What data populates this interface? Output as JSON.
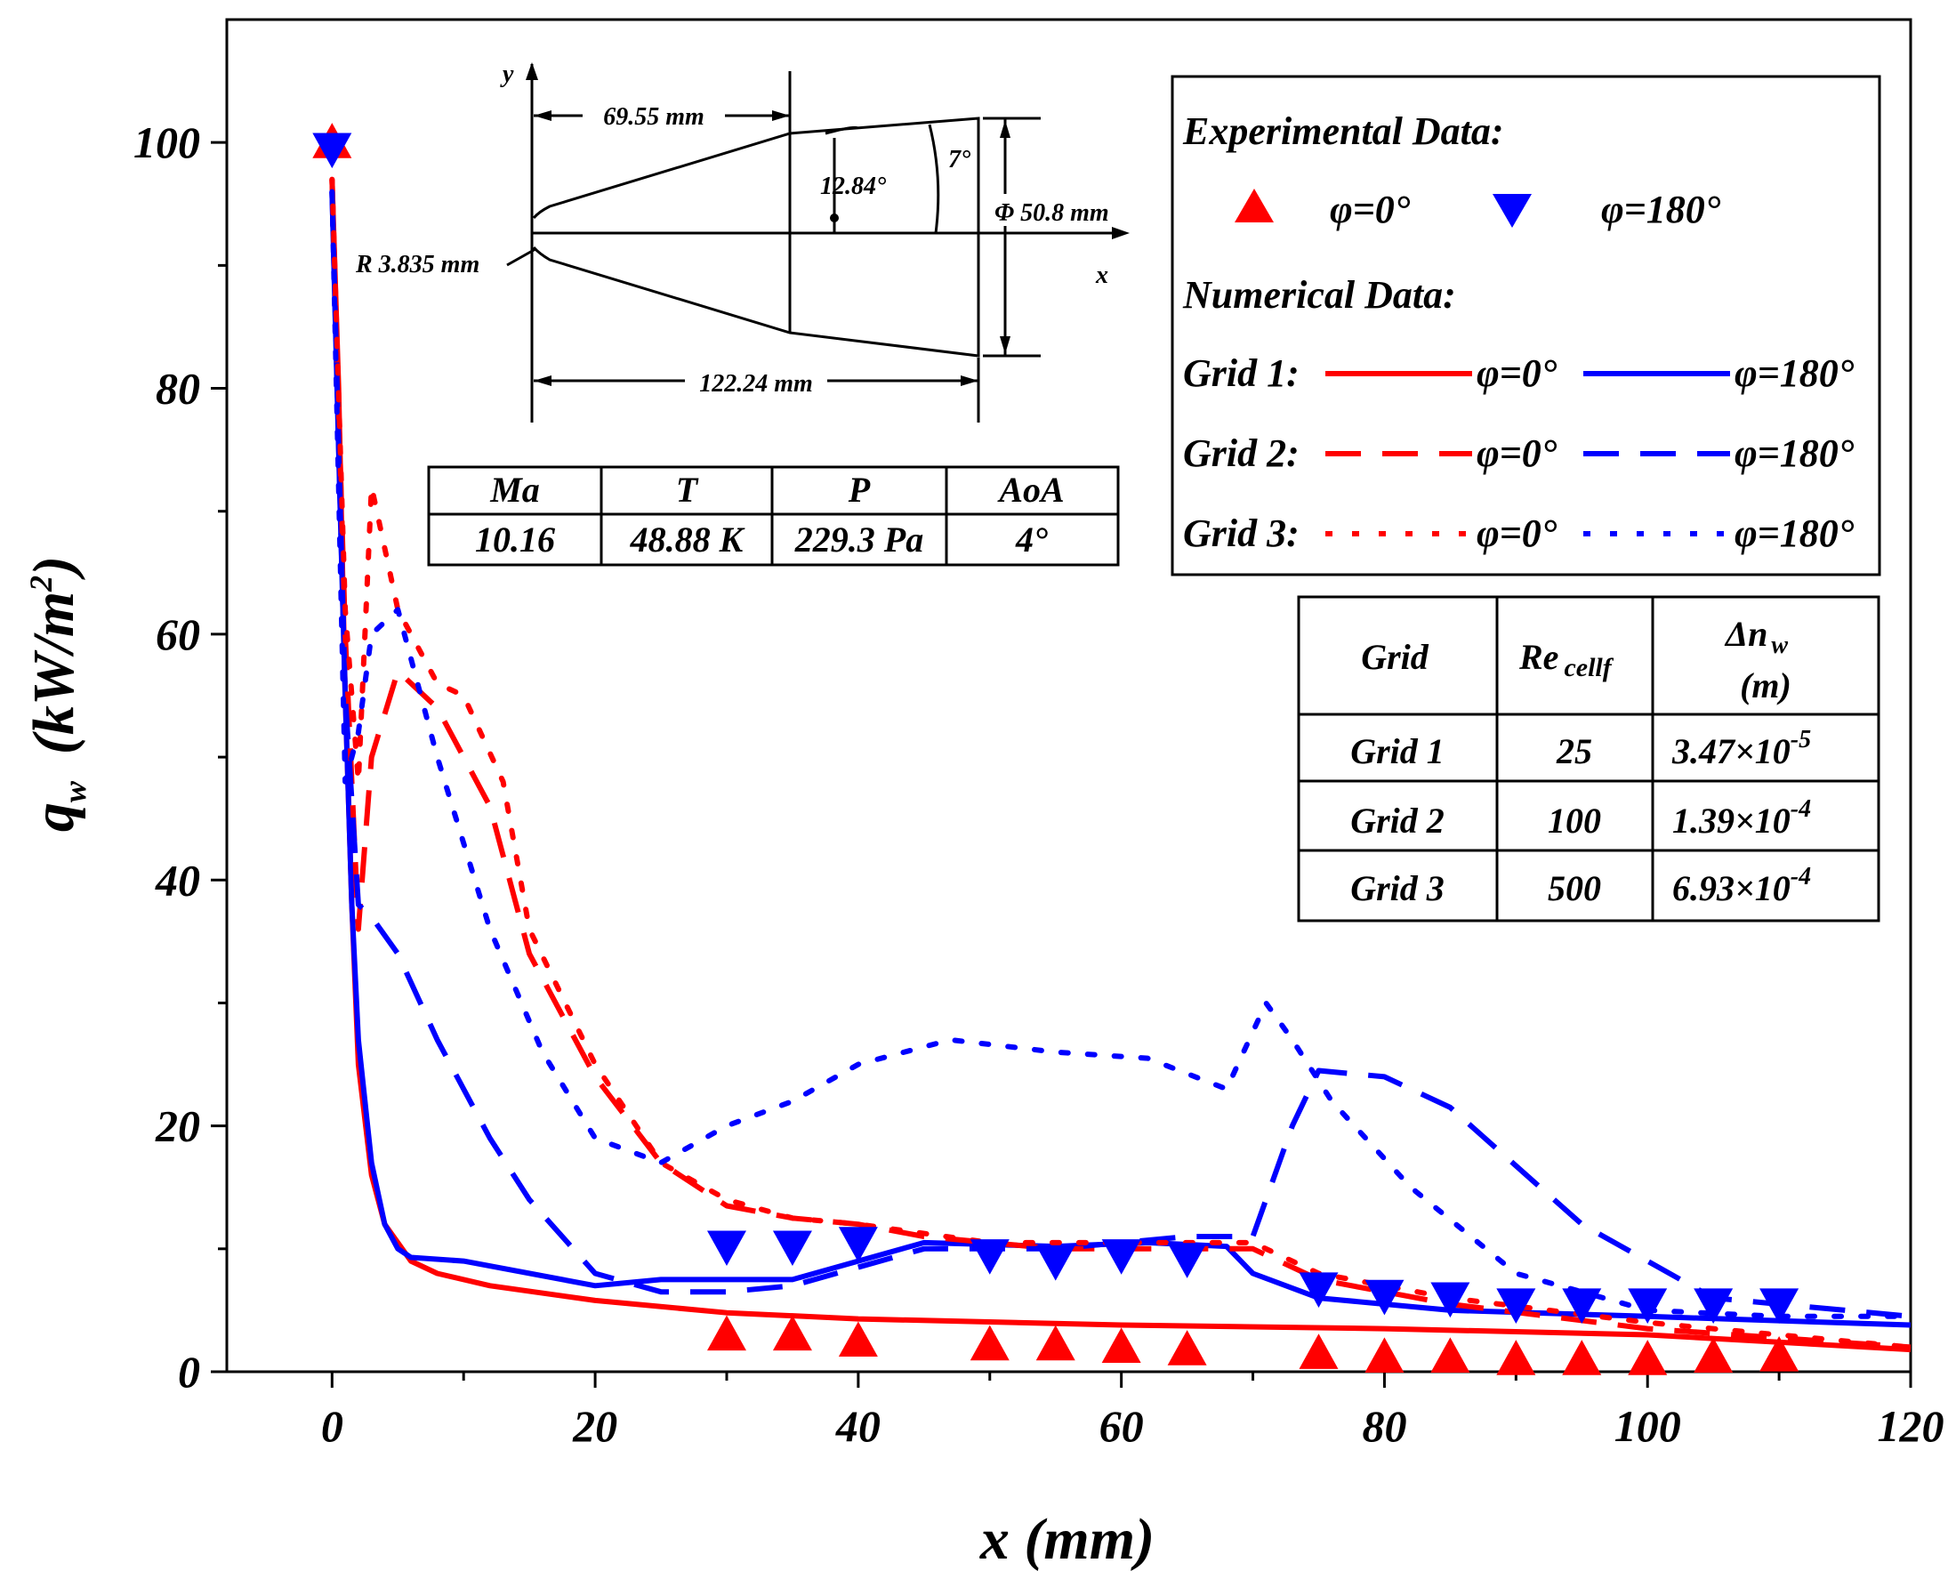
{
  "chart_data": {
    "type": "line",
    "xlabel": "x (mm)",
    "ylabel": "q",
    "ylabel_sub": "w",
    "ylabel_unit": "(kW/m",
    "ylabel_unit_sup": "2",
    "ylabel_unit_close": ")",
    "xlim": [
      -8,
      120
    ],
    "ylim": [
      0,
      110
    ],
    "xticks": [
      0,
      20,
      40,
      60,
      80,
      100,
      120
    ],
    "yticks": [
      0,
      20,
      40,
      60,
      80,
      100
    ],
    "colors": {
      "red": "#ff0000",
      "blue": "#0000ff"
    },
    "experimental": [
      {
        "name": "φ=0°",
        "marker": "triangle-up",
        "color": "#ff0000",
        "x": [
          0,
          30,
          35,
          40,
          50,
          55,
          60,
          65,
          75,
          80,
          85,
          90,
          95,
          100,
          105,
          110
        ],
        "y": [
          100,
          3,
          3,
          2.5,
          2.2,
          2.2,
          2,
          1.8,
          1.5,
          1.2,
          1.2,
          1,
          1,
          1,
          1.2,
          1.3
        ]
      },
      {
        "name": "φ=180°",
        "marker": "triangle-down",
        "color": "#0000ff",
        "x": [
          0,
          30,
          35,
          40,
          50,
          55,
          60,
          65,
          75,
          80,
          85,
          90,
          95,
          100,
          105,
          110
        ],
        "y": [
          99.5,
          10.2,
          10.2,
          10.5,
          9.5,
          9,
          9.5,
          9.2,
          6.8,
          6.2,
          6,
          5.5,
          5.5,
          5.5,
          5.5,
          5.5
        ]
      }
    ],
    "series": [
      {
        "name": "Grid 1 φ=0°",
        "color": "#ff0000",
        "dash": "solid",
        "x": [
          0,
          0.5,
          1,
          1.5,
          2,
          3,
          4,
          6,
          8,
          12,
          20,
          30,
          40,
          60,
          80,
          100,
          120
        ],
        "y": [
          97,
          80,
          55,
          38,
          25,
          16,
          12,
          9,
          8,
          7,
          5.8,
          4.8,
          4.3,
          3.8,
          3.5,
          3,
          1.8
        ]
      },
      {
        "name": "Grid 1 φ=180°",
        "color": "#0000ff",
        "dash": "solid",
        "x": [
          0,
          0.5,
          1,
          1.5,
          2,
          3,
          4,
          5,
          6,
          10,
          20,
          25,
          35,
          45,
          55,
          62,
          68,
          70,
          75,
          85,
          100,
          120
        ],
        "y": [
          96,
          75,
          55,
          38,
          27,
          17,
          12,
          10,
          9.3,
          9,
          7,
          7.5,
          7.5,
          10.5,
          10.2,
          10.5,
          10.2,
          8,
          6,
          5,
          4.5,
          3.8
        ]
      },
      {
        "name": "Grid 2 φ=0°",
        "color": "#ff0000",
        "dash": "dash",
        "x": [
          0,
          1,
          2,
          3,
          5,
          8,
          12,
          15,
          20,
          25,
          30,
          35,
          40,
          45,
          55,
          65,
          70,
          75,
          85,
          100,
          120
        ],
        "y": [
          97,
          60,
          36,
          50,
          57,
          54,
          46,
          34,
          24,
          17,
          13.5,
          12.5,
          12,
          11,
          10,
          10,
          10,
          7.5,
          5.5,
          3.5,
          2
        ]
      },
      {
        "name": "Grid 2 φ=180°",
        "color": "#0000ff",
        "dash": "dash",
        "x": [
          0,
          1,
          2,
          3,
          5,
          8,
          12,
          15,
          20,
          25,
          30,
          35,
          45,
          55,
          65,
          70,
          73,
          75,
          80,
          85,
          95,
          105,
          120
        ],
        "y": [
          96,
          55,
          38,
          37,
          34,
          27,
          19,
          14,
          8,
          6.5,
          6.5,
          7,
          10,
          10,
          11,
          11,
          20,
          24.5,
          24,
          21.5,
          12,
          6,
          4.5
        ]
      },
      {
        "name": "Grid 3 φ=0°",
        "color": "#ff0000",
        "dash": "dot",
        "x": [
          0,
          1,
          2,
          3,
          5,
          8,
          10,
          13,
          15,
          20,
          25,
          30,
          35,
          40,
          50,
          60,
          70,
          75,
          85,
          100,
          120
        ],
        "y": [
          97,
          62,
          48,
          72,
          62,
          56,
          55,
          48,
          36,
          25,
          17,
          14,
          12.5,
          12,
          10.5,
          10.5,
          10.5,
          8,
          6,
          4,
          2
        ]
      },
      {
        "name": "Grid 3 φ=180°",
        "color": "#0000ff",
        "dash": "dot",
        "x": [
          0,
          1,
          2,
          3,
          5,
          8,
          12,
          16,
          20,
          25,
          30,
          35,
          40,
          47,
          55,
          62,
          68,
          71,
          73,
          76,
          82,
          90,
          100,
          110,
          120
        ],
        "y": [
          96,
          48,
          52,
          60,
          62,
          50,
          36,
          26,
          19,
          17,
          20,
          22,
          25,
          27,
          26,
          25.5,
          23,
          30,
          27,
          22,
          15,
          8,
          5,
          4.5,
          4.5
        ]
      }
    ]
  },
  "legend": {
    "exp_title": "Experimental Data:",
    "exp_red": "φ=0°",
    "exp_blue": "φ=180°",
    "num_title": "Numerical Data:",
    "grid1": "Grid 1:",
    "grid2": "Grid 2:",
    "grid3": "Grid 3:",
    "phi0": "φ=0°",
    "phi180": "φ=180°"
  },
  "flow_table": {
    "headers": [
      "Ma",
      "T",
      "P",
      "AoA"
    ],
    "values": [
      "10.16",
      "48.88 K",
      "229.3 Pa",
      "4°"
    ]
  },
  "grid_table": {
    "h_grid": "Grid",
    "h_re": "Re",
    "h_re_sub": "cellf",
    "h_dn": "Δn",
    "h_dn_sub": "w",
    "h_dn_unit": "(m)",
    "rows": [
      {
        "grid": "Grid 1",
        "re": "25",
        "dn_base": "3.47×10",
        "dn_exp": "-5"
      },
      {
        "grid": "Grid 2",
        "re": "100",
        "dn_base": "1.39×10",
        "dn_exp": "-4"
      },
      {
        "grid": "Grid 3",
        "re": "500",
        "dn_base": "6.93×10",
        "dn_exp": "-4"
      }
    ]
  },
  "inset": {
    "y_axis": "y",
    "x_axis": "x",
    "dim_a": "69.55 mm",
    "dim_b": "12.84°",
    "dim_c": "7°",
    "dim_d": "Φ 50.8 mm",
    "dim_e": "R 3.835 mm",
    "dim_f": "122.24 mm"
  }
}
